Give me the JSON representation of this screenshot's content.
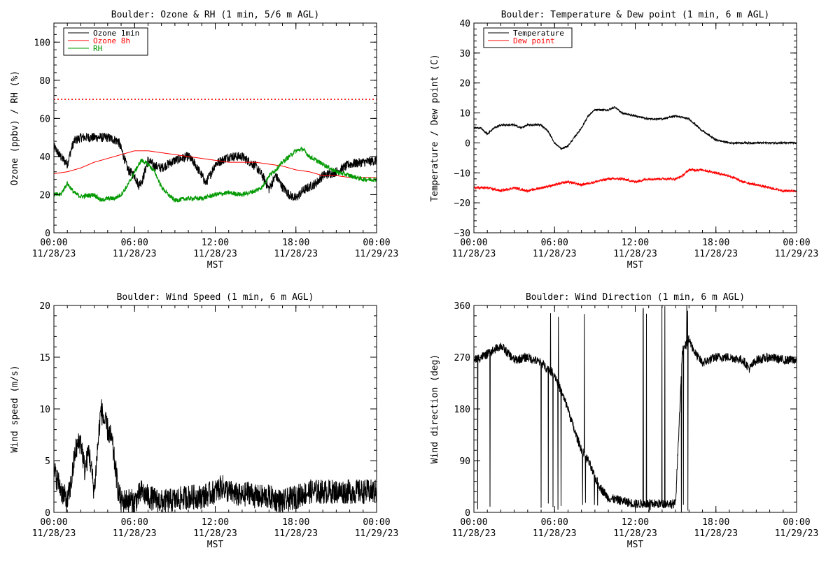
{
  "x_axis": {
    "tick_times": [
      "00:00",
      "06:00",
      "12:00",
      "18:00",
      "00:00"
    ],
    "tick_dates": [
      "11/28/23",
      "11/28/23",
      "11/28/23",
      "11/28/23",
      "11/29/23"
    ],
    "label": "MST"
  },
  "chart_data": [
    {
      "type": "line",
      "title": "Boulder: Ozone & RH (1 min, 5/6 m AGL)",
      "xlabel": "MST",
      "ylabel": "Ozone (ppbv) / RH (%)",
      "xlim": [
        0,
        24
      ],
      "ylim": [
        0,
        110
      ],
      "yticks": [
        0,
        20,
        40,
        60,
        80,
        100
      ],
      "ytick_labels": [
        "0",
        "20",
        "40",
        "60",
        "80",
        "100"
      ],
      "legend_position": "top-left",
      "reference_lines": [
        {
          "y": 70,
          "color": "#ff0000",
          "style": "dotted"
        }
      ],
      "series": [
        {
          "name": "Ozone 1min",
          "color": "#000000",
          "noise": 2.5,
          "x": [
            0,
            0.5,
            1,
            1.3,
            1.5,
            2,
            3,
            4,
            4.8,
            5.2,
            5.5,
            6,
            6.3,
            6.6,
            7,
            7.5,
            8,
            9,
            10,
            10.5,
            11,
            11.3,
            11.6,
            12,
            13,
            14,
            15,
            15.5,
            16,
            16.5,
            17,
            17.5,
            18,
            18.5,
            19,
            19.5,
            20,
            21,
            22,
            23,
            24
          ],
          "y": [
            45,
            40,
            36,
            44,
            48,
            50,
            50,
            50,
            48,
            40,
            33,
            30,
            25,
            28,
            38,
            35,
            34,
            38,
            40,
            36,
            30,
            26,
            30,
            36,
            40,
            40,
            35,
            30,
            23,
            30,
            24,
            20,
            18,
            22,
            24,
            26,
            30,
            32,
            36,
            37,
            38
          ]
        },
        {
          "name": "Ozone 8h",
          "color": "#ff0000",
          "noise": 0,
          "x": [
            0,
            1,
            2,
            3,
            4,
            5,
            6,
            7,
            8,
            9,
            10,
            11,
            12,
            13,
            14,
            15,
            16,
            17,
            18,
            19,
            20,
            21,
            22,
            23,
            24
          ],
          "y": [
            31,
            32,
            34,
            37,
            39,
            41,
            43,
            43,
            42,
            41,
            40,
            39,
            38,
            37,
            37,
            37,
            36,
            35,
            33,
            32,
            30,
            30,
            29,
            29,
            29
          ]
        },
        {
          "name": "RH",
          "color": "#009900",
          "noise": 1.2,
          "x": [
            0,
            0.5,
            1,
            1.5,
            2,
            3,
            3.5,
            4,
            4.5,
            5,
            5.5,
            6,
            6.5,
            7,
            7.5,
            8,
            8.5,
            9,
            10,
            11,
            12,
            13,
            14,
            15,
            15.5,
            16,
            16.5,
            17,
            18,
            18.5,
            19,
            20,
            21,
            22,
            23,
            24
          ],
          "y": [
            20,
            20,
            26,
            21,
            19,
            20,
            17,
            18,
            18,
            20,
            25,
            32,
            38,
            36,
            32,
            24,
            20,
            17,
            18,
            18,
            20,
            21,
            20,
            22,
            24,
            30,
            33,
            37,
            43,
            44,
            40,
            36,
            32,
            30,
            28,
            28
          ]
        }
      ]
    },
    {
      "type": "line",
      "title": "Boulder: Temperature & Dew point (1 min, 6 m AGL)",
      "xlabel": "MST",
      "ylabel": "Temperature / Dew point (C)",
      "xlim": [
        0,
        24
      ],
      "ylim": [
        -30,
        40
      ],
      "yticks": [
        -30,
        -20,
        -10,
        0,
        10,
        20,
        30,
        40
      ],
      "ytick_labels": [
        "−30",
        "−20",
        "−10",
        "0",
        "10",
        "20",
        "30",
        "40"
      ],
      "legend_position": "top-left",
      "series": [
        {
          "name": "Temperature",
          "color": "#000000",
          "noise": 0.3,
          "x": [
            0,
            0.5,
            1,
            1.5,
            2,
            3,
            3.5,
            4,
            4.5,
            5,
            5.5,
            6,
            6.5,
            7,
            7.5,
            8,
            8.5,
            9,
            10,
            10.5,
            11,
            12,
            13,
            14,
            15,
            16,
            16.5,
            17,
            18,
            19,
            20,
            21,
            22,
            23,
            24
          ],
          "y": [
            5,
            5,
            3,
            5,
            6,
            6,
            5,
            6,
            6,
            6,
            4,
            0,
            -2,
            -1,
            2,
            5,
            9,
            11,
            11,
            12,
            10,
            9,
            8,
            8,
            9,
            8,
            6,
            4,
            1,
            0,
            0,
            0,
            0,
            0,
            0
          ]
        },
        {
          "name": "Dew point",
          "color": "#ff0000",
          "noise": 0.4,
          "x": [
            0,
            1,
            2,
            3,
            4,
            5,
            6,
            7,
            8,
            9,
            10,
            11,
            12,
            13,
            14,
            15,
            15.5,
            16,
            17,
            18,
            19,
            20,
            21,
            22,
            23,
            24
          ],
          "y": [
            -15,
            -15,
            -16,
            -15,
            -16,
            -15,
            -14,
            -13,
            -14,
            -13,
            -12,
            -12,
            -13,
            -12,
            -12,
            -12,
            -11,
            -9,
            -9,
            -10,
            -11,
            -13,
            -14,
            -15,
            -16,
            -16
          ]
        }
      ]
    },
    {
      "type": "line",
      "title": "Boulder: Wind Speed (1 min, 6 m AGL)",
      "xlabel": "MST",
      "ylabel": "Wind speed (m/s)",
      "xlim": [
        0,
        24
      ],
      "ylim": [
        0,
        20
      ],
      "yticks": [
        0,
        5,
        10,
        15,
        20
      ],
      "ytick_labels": [
        "0",
        "5",
        "10",
        "15",
        "20"
      ],
      "series": [
        {
          "color": "#000000",
          "noise": 1.2,
          "x": [
            0,
            0.3,
            0.6,
            1,
            1.3,
            1.6,
            2,
            2.3,
            2.6,
            3,
            3.3,
            3.5,
            3.7,
            4,
            4.3,
            4.6,
            4.8,
            5,
            5.5,
            6,
            6.5,
            7,
            8,
            9,
            10,
            11,
            12,
            12.5,
            13,
            14,
            14.5,
            15,
            16,
            17,
            18,
            19,
            20,
            21,
            22,
            23,
            24
          ],
          "y": [
            4,
            3,
            2,
            1,
            3,
            6,
            7,
            4,
            6,
            2,
            7,
            10,
            9,
            8,
            7,
            4,
            2,
            1,
            1.2,
            1,
            2,
            1.5,
            1,
            1.2,
            1.5,
            1.5,
            2,
            2.5,
            2,
            1.5,
            2,
            1.5,
            1.5,
            1,
            1.5,
            2,
            2,
            2,
            2,
            2,
            2
          ]
        }
      ]
    },
    {
      "type": "line",
      "title": "Boulder: Wind Direction (1 min, 6 m AGL)",
      "xlabel": "MST",
      "ylabel": "Wind direction (deg)",
      "xlim": [
        0,
        24
      ],
      "ylim": [
        0,
        360
      ],
      "yticks": [
        0,
        90,
        180,
        270,
        360
      ],
      "ytick_labels": [
        "0",
        "90",
        "180",
        "270",
        "360"
      ],
      "series": [
        {
          "color": "#000000",
          "noise": 8,
          "variable_segments": [
            [
              5,
              16
            ]
          ],
          "x": [
            0,
            1,
            2,
            3,
            4,
            4.5,
            5,
            5.5,
            6,
            6.5,
            7,
            7.5,
            8,
            8.5,
            9,
            9.5,
            10,
            11,
            12,
            13,
            14,
            15,
            15.5,
            16,
            16.5,
            17,
            18,
            19,
            20,
            20.5,
            21,
            22,
            23,
            24
          ],
          "y": [
            265,
            275,
            290,
            265,
            270,
            265,
            260,
            250,
            240,
            210,
            180,
            140,
            110,
            90,
            60,
            40,
            25,
            20,
            15,
            15,
            15,
            15,
            280,
            300,
            275,
            260,
            270,
            270,
            265,
            250,
            265,
            270,
            265,
            265
          ]
        }
      ]
    }
  ]
}
